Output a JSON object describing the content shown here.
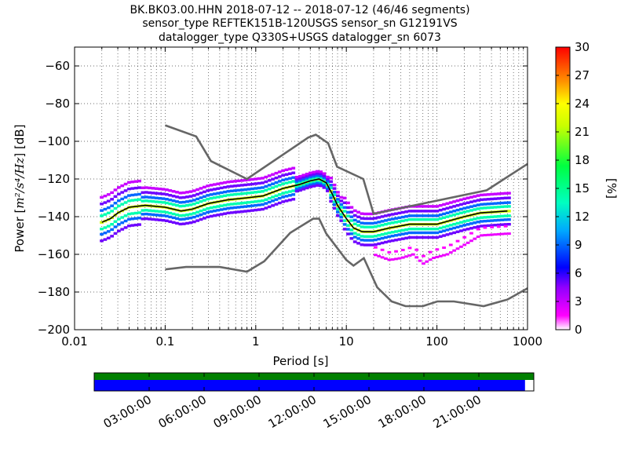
{
  "header": {
    "line1": "BK.BK03.00.HHN   2018-07-12 -- 2018-07-12  (46/46 segments)",
    "line2": "sensor_type REFTEK151B-120USGS sensor_sn G12191VS",
    "line3": "datalogger_type Q330S+USGS datalogger_sn 6073"
  },
  "chart_data": {
    "type": "heatmap",
    "title": "BK.BK03.00.HHN   2018-07-12 -- 2018-07-12  (46/46 segments)",
    "xlabel": "Period [s]",
    "ylabel_prefix": "Power [",
    "ylabel_units": "m²/s⁴/Hz",
    "ylabel_suffix": "] [dB]",
    "x_scale": "log",
    "xlim": [
      0.01,
      1000
    ],
    "ylim": [
      -200,
      -50
    ],
    "x_ticks": [
      {
        "v": 0.01,
        "label": "0.01"
      },
      {
        "v": 0.1,
        "label": "0.1"
      },
      {
        "v": 1,
        "label": "1"
      },
      {
        "v": 10,
        "label": "10"
      },
      {
        "v": 100,
        "label": "100"
      },
      {
        "v": 1000,
        "label": "1000"
      }
    ],
    "y_ticks": [
      {
        "v": -60,
        "label": "−60"
      },
      {
        "v": -80,
        "label": "−80"
      },
      {
        "v": -100,
        "label": "−100"
      },
      {
        "v": -120,
        "label": "−120"
      },
      {
        "v": -140,
        "label": "−140"
      },
      {
        "v": -160,
        "label": "−160"
      },
      {
        "v": -180,
        "label": "−180"
      },
      {
        "v": -200,
        "label": "−200"
      }
    ],
    "grid": true,
    "colorbar": {
      "label": "[%]",
      "range": [
        0,
        30
      ],
      "ticks": [
        "0",
        "3",
        "6",
        "9",
        "12",
        "15",
        "18",
        "21",
        "24",
        "27",
        "30"
      ]
    },
    "noise_model_high": [
      [
        0.1,
        -91.5
      ],
      [
        0.22,
        -97.4
      ],
      [
        0.32,
        -110.5
      ],
      [
        0.8,
        -120
      ],
      [
        3.8,
        -98
      ],
      [
        4.6,
        -96.5
      ],
      [
        6.3,
        -101
      ],
      [
        7.9,
        -113.5
      ],
      [
        15.4,
        -120
      ],
      [
        20,
        -138.5
      ],
      [
        354,
        -126
      ],
      [
        1000,
        -112
      ]
    ],
    "noise_model_low": [
      [
        0.1,
        -168
      ],
      [
        0.17,
        -166.7
      ],
      [
        0.4,
        -166.7
      ],
      [
        0.8,
        -169.2
      ],
      [
        1.24,
        -163.7
      ],
      [
        2.4,
        -148.6
      ],
      [
        4.3,
        -141.1
      ],
      [
        5,
        -141.1
      ],
      [
        6,
        -149
      ],
      [
        10,
        -163
      ],
      [
        12,
        -166
      ],
      [
        15.6,
        -162
      ],
      [
        21.9,
        -177.5
      ],
      [
        31.6,
        -185
      ],
      [
        45,
        -187.5
      ],
      [
        70,
        -187.5
      ],
      [
        101,
        -185
      ],
      [
        154,
        -185
      ],
      [
        328,
        -187.5
      ],
      [
        600,
        -184
      ],
      [
        1000,
        -178
      ]
    ],
    "mean_curve": [
      [
        0.02,
        -143
      ],
      [
        0.025,
        -141
      ],
      [
        0.03,
        -138
      ],
      [
        0.04,
        -135
      ],
      [
        0.06,
        -134
      ],
      [
        0.1,
        -135
      ],
      [
        0.15,
        -137
      ],
      [
        0.2,
        -136
      ],
      [
        0.3,
        -133
      ],
      [
        0.5,
        -131
      ],
      [
        0.8,
        -130
      ],
      [
        1.2,
        -129
      ],
      [
        2,
        -125
      ],
      [
        3,
        -123
      ],
      [
        4,
        -121
      ],
      [
        5,
        -120
      ],
      [
        6,
        -122
      ],
      [
        7,
        -128
      ],
      [
        8,
        -134
      ],
      [
        10,
        -141
      ],
      [
        12,
        -146
      ],
      [
        15,
        -148
      ],
      [
        20,
        -148
      ],
      [
        30,
        -146
      ],
      [
        50,
        -144
      ],
      [
        70,
        -144
      ],
      [
        100,
        -144
      ],
      [
        200,
        -140
      ],
      [
        300,
        -138
      ],
      [
        600,
        -137
      ]
    ],
    "density_ridges": [
      {
        "pct": 22,
        "offset": 0
      },
      {
        "pct": 14,
        "offset": 2.5
      },
      {
        "pct": 14,
        "offset": -2.5
      },
      {
        "pct": 9,
        "offset": 4.5
      },
      {
        "pct": 9,
        "offset": -4.5
      },
      {
        "pct": 5,
        "offset": 7
      },
      {
        "pct": 5,
        "offset": -7
      },
      {
        "pct": 3,
        "offset": 9.5
      }
    ],
    "secondary_band": [
      [
        20,
        -160
      ],
      [
        30,
        -163
      ],
      [
        40,
        -162
      ],
      [
        55,
        -160
      ],
      [
        70,
        -165
      ],
      [
        90,
        -162
      ],
      [
        130,
        -160
      ],
      [
        200,
        -155
      ],
      [
        300,
        -150
      ],
      [
        600,
        -149
      ]
    ]
  },
  "time_bar": {
    "ticks": [
      "03:00:00",
      "06:00:00",
      "09:00:00",
      "12:00:00",
      "15:00:00",
      "18:00:00",
      "21:00:00"
    ],
    "coverage_fraction": 0.98,
    "colors": {
      "segments": "#008000",
      "data": "#0000ff"
    }
  }
}
